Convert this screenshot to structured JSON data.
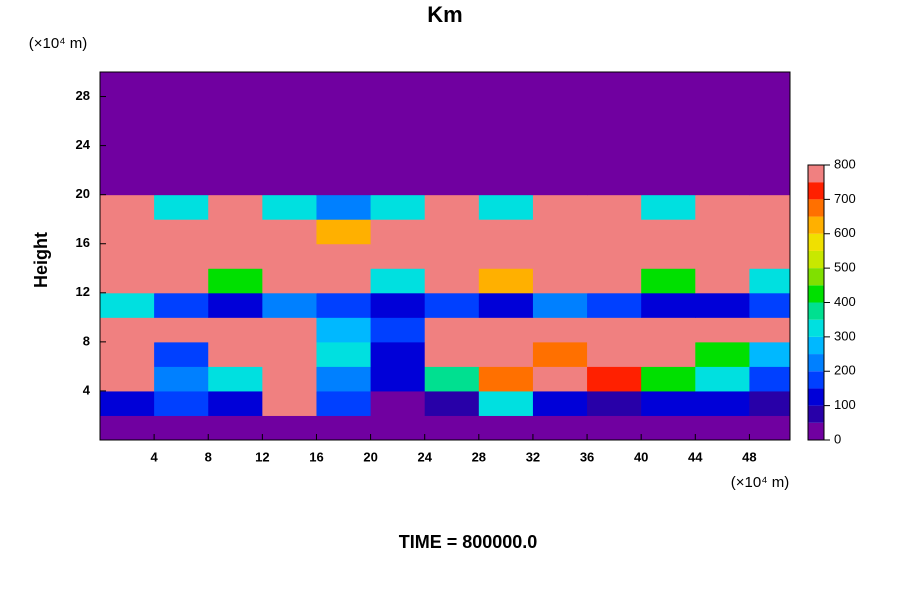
{
  "chart_data": {
    "type": "heatmap",
    "title": "Km",
    "y_label": "Height",
    "x_unit": "(×10⁴ m)",
    "y_unit": "(×10⁴ m)",
    "footer": "TIME = 800000.0",
    "x": [
      2,
      6,
      10,
      14,
      18,
      22,
      26,
      30,
      34,
      38,
      42,
      46,
      50
    ],
    "y": [
      1,
      3,
      5,
      7,
      9,
      11,
      13,
      15,
      17,
      19,
      21,
      23,
      25,
      27,
      29
    ],
    "z": [
      [
        0,
        0,
        0,
        0,
        0,
        0,
        0,
        0,
        0,
        0,
        0,
        0,
        0
      ],
      [
        100,
        150,
        100,
        750,
        150,
        0,
        50,
        300,
        100,
        50,
        100,
        100,
        50
      ],
      [
        800,
        200,
        300,
        800,
        200,
        100,
        350,
        650,
        800,
        700,
        400,
        300,
        150
      ],
      [
        800,
        150,
        800,
        800,
        300,
        100,
        800,
        800,
        650,
        800,
        800,
        400,
        250
      ],
      [
        800,
        800,
        800,
        800,
        250,
        150,
        800,
        800,
        800,
        800,
        800,
        800,
        800
      ],
      [
        300,
        150,
        100,
        200,
        150,
        100,
        150,
        100,
        200,
        150,
        100,
        100,
        150
      ],
      [
        800,
        800,
        400,
        800,
        800,
        300,
        800,
        600,
        800,
        800,
        400,
        800,
        300
      ],
      [
        800,
        800,
        800,
        800,
        800,
        800,
        800,
        800,
        800,
        800,
        800,
        800,
        800
      ],
      [
        800,
        800,
        800,
        800,
        600,
        800,
        800,
        800,
        800,
        800,
        800,
        800,
        800
      ],
      [
        800,
        300,
        800,
        300,
        200,
        300,
        800,
        300,
        800,
        800,
        300,
        800,
        800
      ],
      [
        0,
        0,
        0,
        0,
        0,
        0,
        0,
        0,
        0,
        0,
        0,
        0,
        0
      ],
      [
        0,
        0,
        0,
        0,
        0,
        0,
        0,
        0,
        0,
        0,
        0,
        0,
        0
      ],
      [
        0,
        0,
        0,
        0,
        0,
        0,
        0,
        0,
        0,
        0,
        0,
        0,
        0
      ],
      [
        0,
        0,
        0,
        0,
        0,
        0,
        0,
        0,
        0,
        0,
        0,
        0,
        0
      ],
      [
        0,
        0,
        0,
        0,
        0,
        0,
        0,
        0,
        0,
        0,
        0,
        0,
        0
      ]
    ],
    "xlim": [
      0,
      51
    ],
    "ylim": [
      0,
      30
    ],
    "xticks": [
      4,
      8,
      12,
      16,
      20,
      24,
      28,
      32,
      36,
      40,
      44,
      48
    ],
    "yticks": [
      4,
      8,
      12,
      16,
      20,
      24,
      28
    ],
    "levels": [
      0,
      50,
      100,
      150,
      200,
      250,
      300,
      350,
      400,
      450,
      500,
      550,
      600,
      650,
      700,
      750,
      800
    ],
    "colors": [
      "#7000a0",
      "#2800a8",
      "#0000d8",
      "#0040ff",
      "#0080ff",
      "#00b8ff",
      "#00e0e0",
      "#00e090",
      "#00e000",
      "#80e000",
      "#c8e800",
      "#f0e000",
      "#ffb000",
      "#ff7000",
      "#ff2000",
      "#f08080"
    ],
    "colorbar_ticks": [
      0,
      100,
      200,
      300,
      400,
      500,
      600,
      700,
      800
    ]
  }
}
